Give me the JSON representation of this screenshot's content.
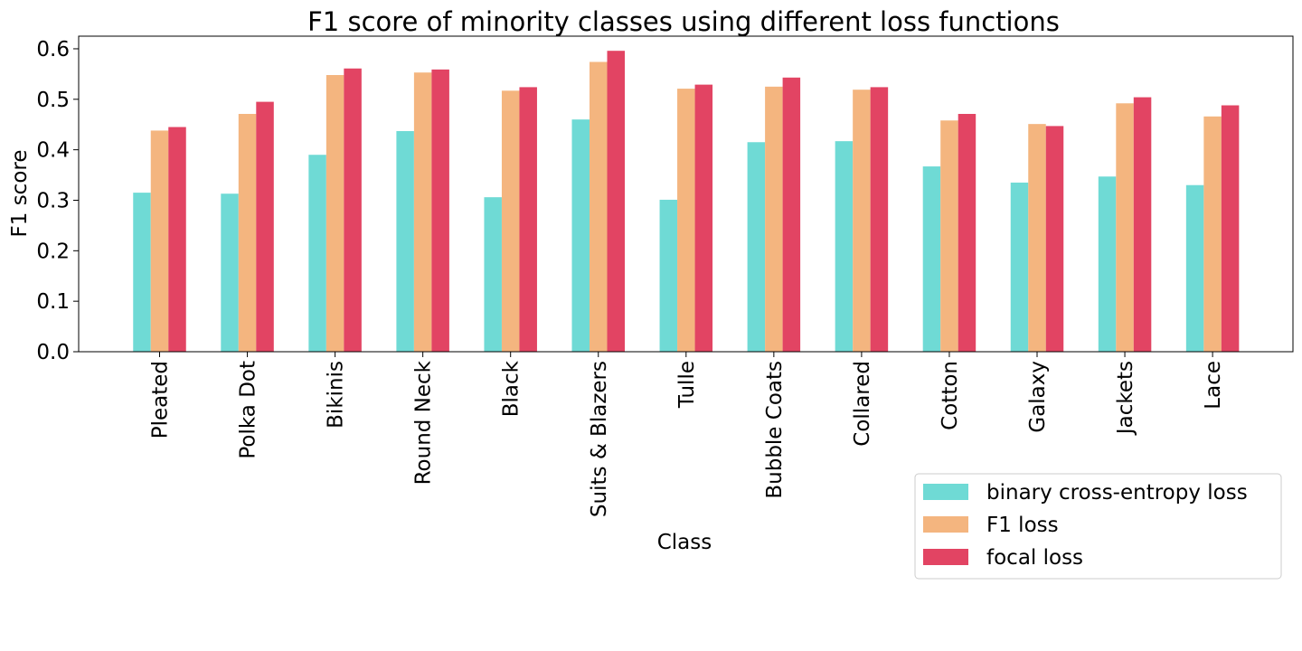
{
  "chart_data": {
    "type": "bar",
    "title": "F1 score of minority classes using different loss functions",
    "xlabel": "Class",
    "ylabel": "F1 score",
    "ylim": [
      0,
      0.625
    ],
    "yticks": [
      "0.0",
      "0.1",
      "0.2",
      "0.3",
      "0.4",
      "0.5",
      "0.6"
    ],
    "grid": false,
    "legend_position": "bottom-right, outside plot",
    "categories": [
      "Pleated",
      "Polka Dot",
      "Bikinis",
      "Round Neck",
      "Black",
      "Suits & Blazers",
      "Tulle",
      "Bubble Coats",
      "Collared",
      "Cotton",
      "Galaxy",
      "Jackets",
      "Lace"
    ],
    "series": [
      {
        "name": "binary cross-entropy loss",
        "color": "#6fdad5",
        "values": [
          0.315,
          0.313,
          0.39,
          0.437,
          0.306,
          0.46,
          0.301,
          0.415,
          0.417,
          0.367,
          0.335,
          0.347,
          0.33
        ]
      },
      {
        "name": "F1 loss",
        "color": "#f4b57f",
        "values": [
          0.438,
          0.471,
          0.548,
          0.553,
          0.517,
          0.574,
          0.521,
          0.525,
          0.519,
          0.458,
          0.451,
          0.492,
          0.466
        ]
      },
      {
        "name": "focal loss",
        "color": "#e24463",
        "values": [
          0.445,
          0.495,
          0.561,
          0.559,
          0.524,
          0.596,
          0.529,
          0.543,
          0.524,
          0.471,
          0.447,
          0.504,
          0.488
        ]
      }
    ]
  }
}
